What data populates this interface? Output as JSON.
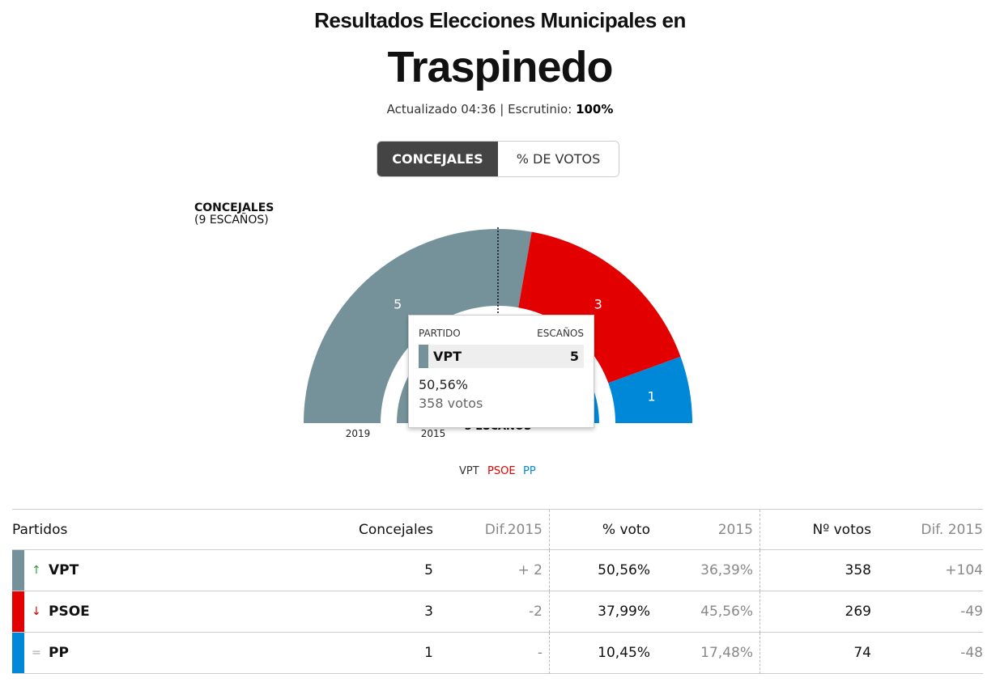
{
  "header": {
    "pre_title": "Resultados Elecciones Municipales en",
    "title": "Traspinedo",
    "updated_text": "Actualizado 04:36 | Escrutinio:",
    "scrutiny": "100%"
  },
  "toggle": {
    "seats_label": "CONCEJALES",
    "votes_label": "% DE VOTOS"
  },
  "seats_label": {
    "line1": "CONCEJALES",
    "line2": "(9 ESCAÑOS)"
  },
  "colors": {
    "VPT": "#75929a",
    "PSOE": "#e30000",
    "PP": "#0088d8"
  },
  "chart_data": {
    "type": "pie",
    "total_seats": 9,
    "majority_label": "5 ESCAÑOS",
    "outer_ring": {
      "label": "2019",
      "parties": [
        {
          "name": "VPT",
          "seats": 5
        },
        {
          "name": "PSOE",
          "seats": 3
        },
        {
          "name": "PP",
          "seats": 1
        }
      ]
    },
    "inner_ring": {
      "label": "2015",
      "parties": [
        {
          "name": "VPT",
          "seats": 3
        },
        {
          "name": "PSOE",
          "seats": 5
        },
        {
          "name": "PP",
          "seats": 1
        }
      ]
    },
    "legend": [
      "VPT",
      "PSOE",
      "PP"
    ]
  },
  "tooltip": {
    "col_party": "PARTIDO",
    "col_seats": "ESCAÑOS",
    "party": "VPT",
    "seats": "5",
    "pct": "50,56%",
    "votes": "358 votos"
  },
  "table": {
    "headers": {
      "party": "Partidos",
      "seats": "Concejales",
      "seats_diff": "Dif.2015",
      "pct": "% voto",
      "pct_prev": "2015",
      "votes": "Nº votos",
      "votes_diff": "Dif. 2015"
    },
    "rows": [
      {
        "arrow": "↑",
        "party": "VPT",
        "seats": "5",
        "seats_diff": "+ 2",
        "pct": "50,56%",
        "pct_prev": "36,39%",
        "votes": "358",
        "votes_diff": "+104"
      },
      {
        "arrow": "↓",
        "party": "PSOE",
        "seats": "3",
        "seats_diff": "-2",
        "pct": "37,99%",
        "pct_prev": "45,56%",
        "votes": "269",
        "votes_diff": "-49"
      },
      {
        "arrow": "=",
        "party": "PP",
        "seats": "1",
        "seats_diff": "-",
        "pct": "10,45%",
        "pct_prev": "17,48%",
        "votes": "74",
        "votes_diff": "-48"
      }
    ]
  }
}
